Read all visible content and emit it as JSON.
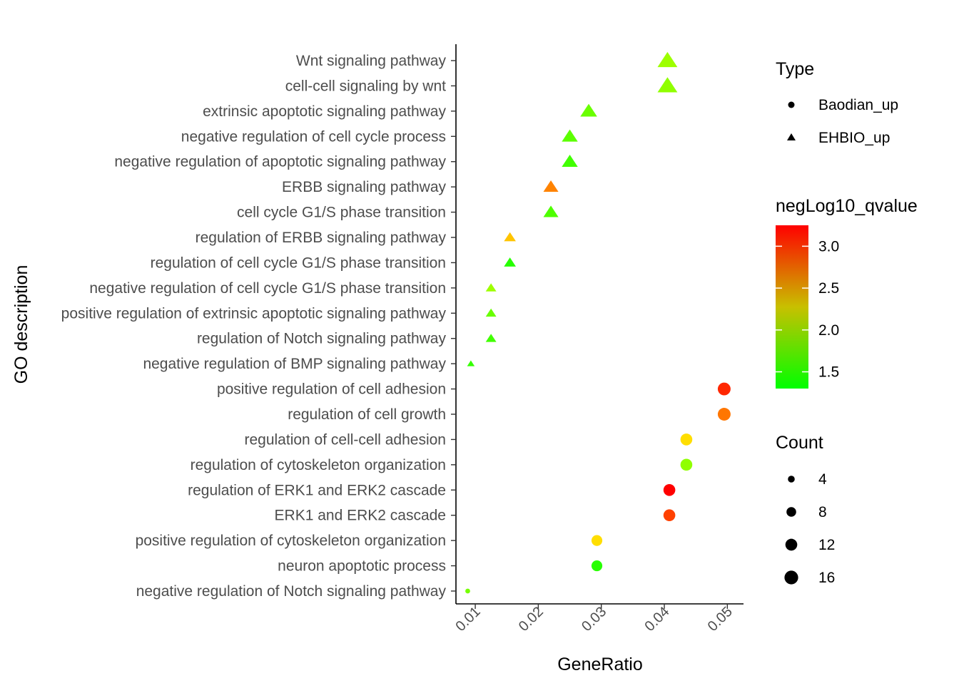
{
  "chart_data": {
    "type": "scatter",
    "title": "",
    "xlabel": "GeneRatio",
    "ylabel": "GO description",
    "xlim": [
      0.0075,
      0.052
    ],
    "x_ticks": [
      0.01,
      0.02,
      0.03,
      0.04,
      0.05
    ],
    "x_tick_labels": [
      "0.01",
      "0.02",
      "0.03",
      "0.04",
      "0.05"
    ],
    "grid": false,
    "categories": [
      "Wnt signaling pathway",
      "cell-cell signaling by wnt",
      "extrinsic apoptotic signaling pathway",
      "negative regulation of cell cycle process",
      "negative regulation of apoptotic signaling pathway",
      "ERBB signaling pathway",
      "cell cycle G1/S phase transition",
      "regulation of ERBB signaling pathway",
      "regulation of cell cycle G1/S phase transition",
      "negative regulation of cell cycle G1/S phase transition",
      "positive regulation of extrinsic apoptotic signaling pathway",
      "regulation of Notch signaling pathway",
      "negative regulation of BMP signaling pathway",
      "positive regulation of cell adhesion",
      "regulation of cell growth",
      "regulation of cell-cell adhesion",
      "regulation of cytoskeleton organization",
      "regulation of ERK1 and ERK2 cascade",
      "ERK1 and ERK2 cascade",
      "positive regulation of cytoskeleton organization",
      "neuron apoptotic process",
      "negative regulation of Notch signaling pathway"
    ],
    "points": [
      {
        "term": "Wnt signaling pathway",
        "x": 0.0405,
        "count": 14,
        "qvalue": 1.9,
        "type": "EHBIO_up"
      },
      {
        "term": "cell-cell signaling by wnt",
        "x": 0.0405,
        "count": 14,
        "qvalue": 1.85,
        "type": "EHBIO_up"
      },
      {
        "term": "extrinsic apoptotic signaling pathway",
        "x": 0.028,
        "count": 10,
        "qvalue": 1.7,
        "type": "EHBIO_up"
      },
      {
        "term": "negative regulation of cell cycle process",
        "x": 0.025,
        "count": 9,
        "qvalue": 1.65,
        "type": "EHBIO_up"
      },
      {
        "term": "negative regulation of apoptotic signaling pathway",
        "x": 0.025,
        "count": 9,
        "qvalue": 1.55,
        "type": "EHBIO_up"
      },
      {
        "term": "ERBB signaling pathway",
        "x": 0.022,
        "count": 8,
        "qvalue": 2.75,
        "type": "EHBIO_up"
      },
      {
        "term": "cell cycle G1/S phase transition",
        "x": 0.022,
        "count": 8,
        "qvalue": 1.6,
        "type": "EHBIO_up"
      },
      {
        "term": "regulation of ERBB signaling pathway",
        "x": 0.0155,
        "count": 5,
        "qvalue": 2.5,
        "type": "EHBIO_up"
      },
      {
        "term": "regulation of cell cycle G1/S phase transition",
        "x": 0.0155,
        "count": 5,
        "qvalue": 1.45,
        "type": "EHBIO_up"
      },
      {
        "term": "negative regulation of cell cycle G1/S phase transition",
        "x": 0.0125,
        "count": 4,
        "qvalue": 1.9,
        "type": "EHBIO_up"
      },
      {
        "term": "positive regulation of extrinsic apoptotic signaling pathway",
        "x": 0.0125,
        "count": 4,
        "qvalue": 1.7,
        "type": "EHBIO_up"
      },
      {
        "term": "regulation of Notch signaling pathway",
        "x": 0.0125,
        "count": 4,
        "qvalue": 1.55,
        "type": "EHBIO_up"
      },
      {
        "term": "negative regulation of BMP signaling pathway",
        "x": 0.0093,
        "count": 2,
        "qvalue": 1.5,
        "type": "EHBIO_up"
      },
      {
        "term": "positive regulation of cell adhesion",
        "x": 0.0495,
        "count": 14,
        "qvalue": 3.1,
        "type": "Baodian_up"
      },
      {
        "term": "regulation of cell growth",
        "x": 0.0495,
        "count": 14,
        "qvalue": 2.8,
        "type": "Baodian_up"
      },
      {
        "term": "regulation of cell-cell adhesion",
        "x": 0.0435,
        "count": 12,
        "qvalue": 2.4,
        "type": "Baodian_up"
      },
      {
        "term": "regulation of cytoskeleton organization",
        "x": 0.0435,
        "count": 12,
        "qvalue": 1.85,
        "type": "Baodian_up"
      },
      {
        "term": "regulation of ERK1 and ERK2 cascade",
        "x": 0.0408,
        "count": 12,
        "qvalue": 3.25,
        "type": "Baodian_up"
      },
      {
        "term": "ERK1 and ERK2 cascade",
        "x": 0.0408,
        "count": 12,
        "qvalue": 3.0,
        "type": "Baodian_up"
      },
      {
        "term": "positive regulation of cytoskeleton organization",
        "x": 0.0293,
        "count": 10,
        "qvalue": 2.4,
        "type": "Baodian_up"
      },
      {
        "term": "neuron apoptotic process",
        "x": 0.0293,
        "count": 10,
        "qvalue": 1.45,
        "type": "Baodian_up"
      },
      {
        "term": "negative regulation of Notch signaling pathway",
        "x": 0.0088,
        "count": 2,
        "qvalue": 1.75,
        "type": "Baodian_up"
      }
    ],
    "legend_placement": "right",
    "legend_type": {
      "title": "Type",
      "items": [
        {
          "label": "Baodian_up",
          "shape": "circle"
        },
        {
          "label": "EHBIO_up",
          "shape": "triangle"
        }
      ]
    },
    "legend_color": {
      "title": "negLog10_qvalue",
      "range": [
        1.3,
        3.25
      ],
      "ticks": [
        1.5,
        2.0,
        2.5,
        3.0
      ],
      "tick_labels": [
        "1.5",
        "2.0",
        "2.5",
        "3.0"
      ],
      "low_color": "#00ff00",
      "high_color": "#ff0000"
    },
    "legend_size": {
      "title": "Count",
      "values": [
        4,
        8,
        12,
        16
      ],
      "labels": [
        "4",
        "8",
        "12",
        "16"
      ]
    }
  }
}
